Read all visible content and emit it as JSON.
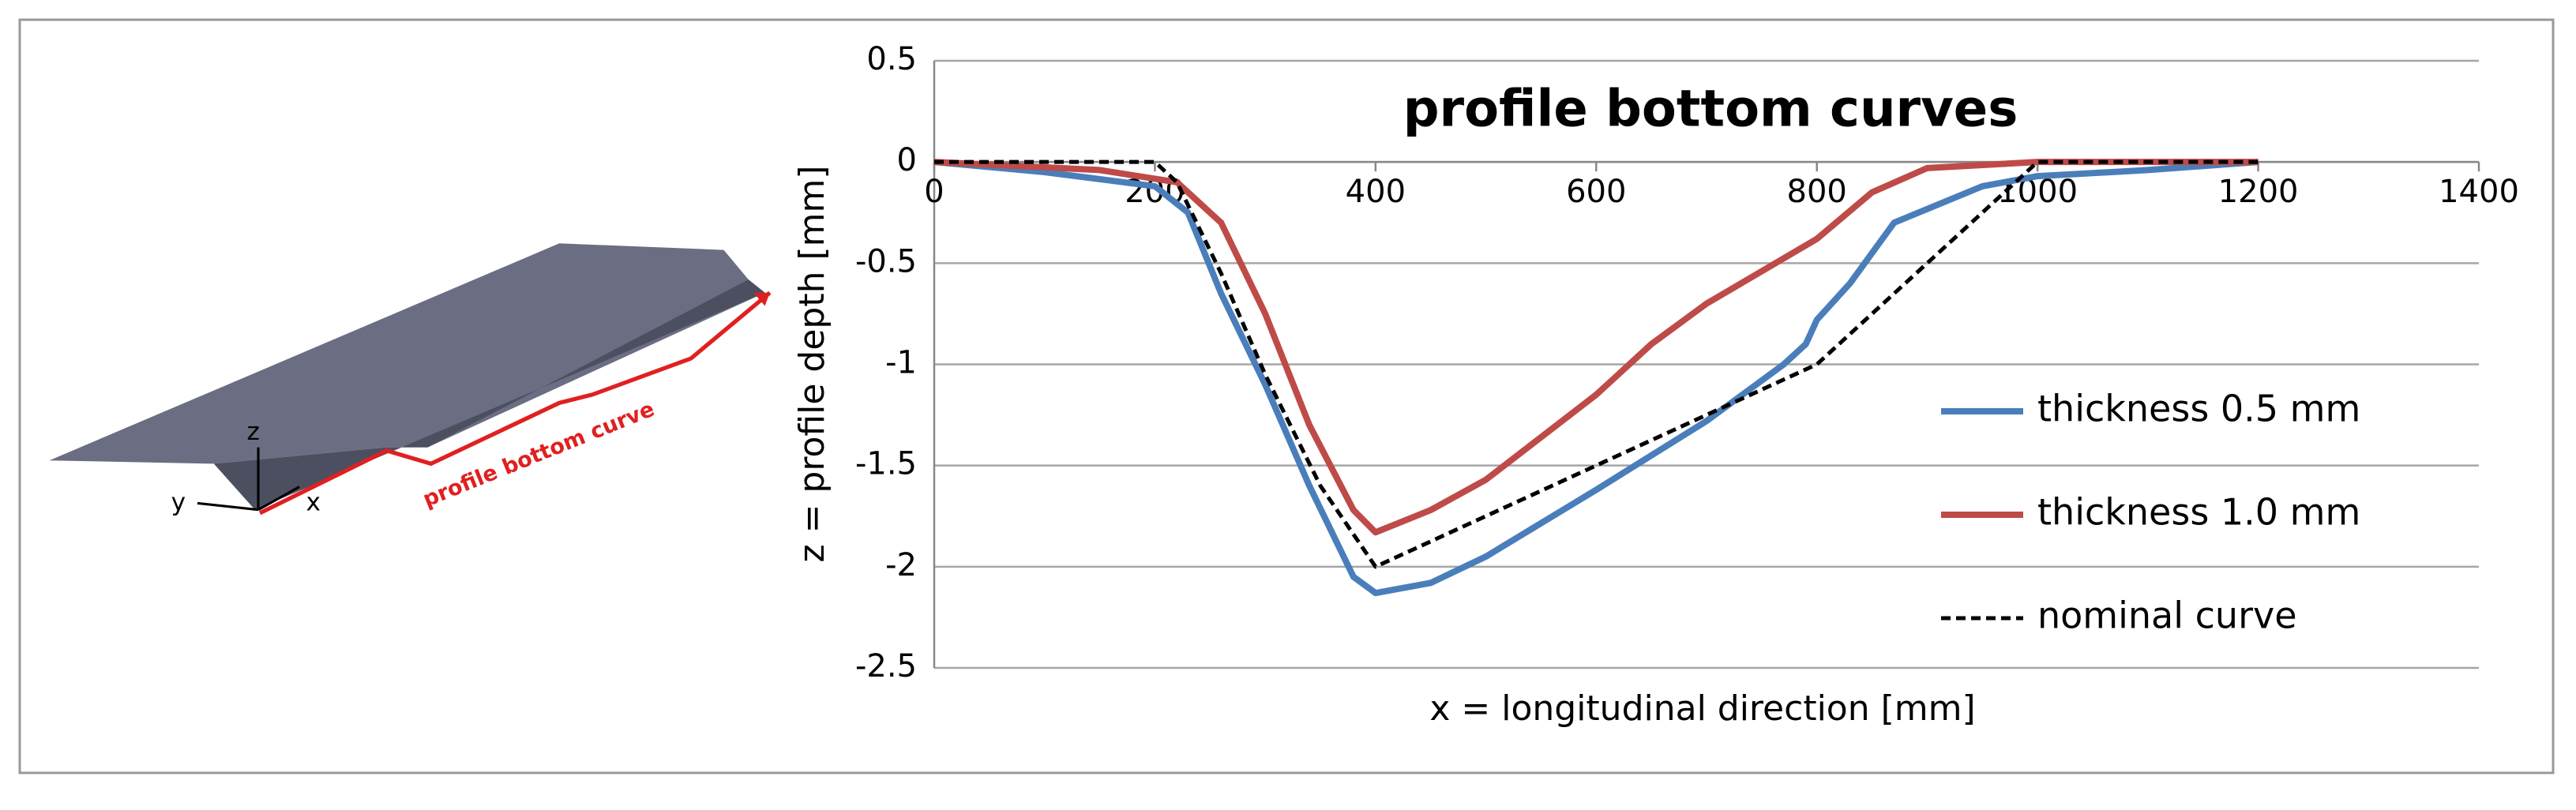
{
  "illustration": {
    "curve_label": "profile bottom curve",
    "axis_z": "z",
    "axis_y": "y",
    "axis_x": "x"
  },
  "chart_data": {
    "type": "line",
    "title": "profile bottom curves",
    "x_label": "x = longitudinal direction [mm]",
    "y_label": "z = profile depth [mm]",
    "xlim": [
      0,
      1400
    ],
    "xticks": [
      0,
      200,
      400,
      600,
      800,
      1000,
      1200,
      1400
    ],
    "ylim": [
      -2.5,
      0.5
    ],
    "yticks": [
      0.5,
      0,
      -0.5,
      -1,
      -1.5,
      -2,
      -2.5
    ],
    "grid": true,
    "legend": "right",
    "series": [
      {
        "name": "thickness 0.5 mm",
        "color": "#4a7ebb",
        "line_style": "solid",
        "x": [
          0,
          100,
          200,
          230,
          260,
          300,
          340,
          380,
          400,
          450,
          500,
          600,
          700,
          770,
          790,
          800,
          830,
          870,
          950,
          1000,
          1100,
          1200
        ],
        "values": [
          0,
          -0.05,
          -0.12,
          -0.25,
          -0.65,
          -1.1,
          -1.6,
          -2.05,
          -2.13,
          -2.08,
          -1.95,
          -1.62,
          -1.28,
          -1.0,
          -0.9,
          -0.78,
          -0.6,
          -0.3,
          -0.12,
          -0.07,
          -0.04,
          0
        ]
      },
      {
        "name": "thickness 1.0 mm",
        "color": "#be4b48",
        "line_style": "solid",
        "x": [
          0,
          150,
          220,
          260,
          300,
          340,
          380,
          400,
          450,
          500,
          600,
          650,
          700,
          800,
          850,
          900,
          1000,
          1200
        ],
        "values": [
          0,
          -0.04,
          -0.1,
          -0.3,
          -0.75,
          -1.3,
          -1.72,
          -1.83,
          -1.72,
          -1.57,
          -1.15,
          -0.9,
          -0.7,
          -0.38,
          -0.15,
          -0.03,
          0,
          0
        ]
      },
      {
        "name": "nominal curve",
        "color": "#000000",
        "line_style": "dashed",
        "x": [
          0,
          200,
          220,
          260,
          300,
          350,
          400,
          600,
          800,
          900,
          1000,
          1200
        ],
        "values": [
          0,
          0,
          -0.1,
          -0.55,
          -1.05,
          -1.6,
          -2.0,
          -1.5,
          -1.0,
          -0.5,
          0,
          0
        ]
      }
    ]
  }
}
